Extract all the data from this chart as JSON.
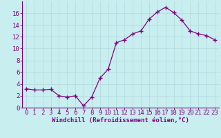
{
  "x": [
    0,
    1,
    2,
    3,
    4,
    5,
    6,
    7,
    8,
    9,
    10,
    11,
    12,
    13,
    14,
    15,
    16,
    17,
    18,
    19,
    20,
    21,
    22,
    23
  ],
  "y": [
    3.2,
    3.0,
    3.0,
    3.1,
    2.0,
    1.8,
    2.0,
    0.3,
    1.8,
    5.0,
    6.5,
    11.0,
    11.5,
    12.5,
    13.0,
    15.0,
    16.2,
    17.0,
    16.1,
    14.8,
    13.0,
    12.5,
    12.2,
    11.5
  ],
  "line_color": "#800080",
  "marker": "+",
  "marker_size": 4,
  "bg_color": "#c8eef0",
  "grid_color": "#b0d8dc",
  "xlabel": "Windchill (Refroidissement éolien,°C)",
  "xlabel_color": "#800080",
  "tick_color": "#800080",
  "axis_color": "#800080",
  "ylim": [
    0,
    18
  ],
  "yticks": [
    0,
    2,
    4,
    6,
    8,
    10,
    12,
    14,
    16
  ],
  "xlim": [
    -0.5,
    23.5
  ],
  "xticks": [
    0,
    1,
    2,
    3,
    4,
    5,
    6,
    7,
    8,
    9,
    10,
    11,
    12,
    13,
    14,
    15,
    16,
    17,
    18,
    19,
    20,
    21,
    22,
    23
  ],
  "linewidth": 0.9,
  "tick_fontsize": 6.5,
  "xlabel_fontsize": 6.5
}
